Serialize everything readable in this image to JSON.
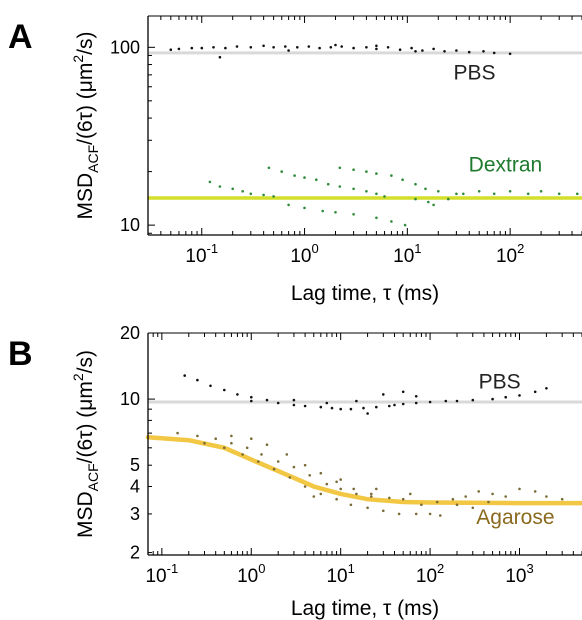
{
  "chart_data": [
    {
      "panel_label": "A",
      "type": "scatter",
      "xscale": "log",
      "yscale": "log",
      "xlim": [
        0.03,
        500
      ],
      "ylim": [
        8.8,
        150
      ],
      "xlabel": "Lag time, τ (ms)",
      "ylabel": {
        "base": "MSD",
        "sub": "ACF",
        "mid": "/(6τ) (μm",
        "sup": "2",
        "end": "/s)"
      },
      "xticks": [
        {
          "value": 0.1,
          "base": "10",
          "exp": "-1"
        },
        {
          "value": 1,
          "base": "10",
          "exp": "0"
        },
        {
          "value": 10,
          "base": "10",
          "exp": "1"
        },
        {
          "value": 100,
          "base": "10",
          "exp": "2"
        }
      ],
      "yticks": [
        {
          "value": 10,
          "label": "10"
        },
        {
          "value": 100,
          "label": "100"
        }
      ],
      "reference_lines": [
        {
          "y": 93,
          "color": "#d9d9d9"
        },
        {
          "y": 14.2,
          "color": "#d4df2a"
        }
      ],
      "annotations": [
        {
          "text": "PBS",
          "x": 45,
          "y": 66,
          "color": "#222222"
        },
        {
          "text": "Dextran",
          "x": 90,
          "y": 20,
          "color": "#1e7a2e"
        }
      ],
      "series": [
        {
          "color": "#111111",
          "points": [
            [
              0.05,
              97
            ],
            [
              0.06,
              98
            ],
            [
              0.08,
              99
            ],
            [
              0.1,
              99
            ],
            [
              0.13,
              100
            ],
            [
              0.17,
              99
            ],
            [
              0.22,
              101
            ],
            [
              0.3,
              100
            ],
            [
              0.4,
              102
            ],
            [
              0.5,
              100
            ],
            [
              0.65,
              101
            ],
            [
              0.85,
              100
            ],
            [
              1.1,
              101
            ],
            [
              1.4,
              99
            ],
            [
              1.8,
              100
            ],
            [
              2.3,
              101
            ],
            [
              3,
              99
            ],
            [
              4,
              100
            ],
            [
              5,
              98
            ],
            [
              6.5,
              100
            ],
            [
              8.5,
              97
            ],
            [
              11,
              99
            ],
            [
              14,
              96
            ],
            [
              18,
              98
            ],
            [
              23,
              95
            ],
            [
              30,
              96
            ],
            [
              40,
              94
            ],
            [
              55,
              95
            ],
            [
              70,
              93
            ],
            [
              100,
              92
            ],
            [
              0.7,
              96
            ],
            [
              2,
              103
            ],
            [
              5,
              102
            ],
            [
              12,
              95
            ],
            [
              0.15,
              88
            ]
          ]
        },
        {
          "color": "#2e8b3a",
          "points": [
            [
              0.12,
              17.5
            ],
            [
              0.15,
              16.5
            ],
            [
              0.2,
              16
            ],
            [
              0.25,
              15.5
            ],
            [
              0.3,
              15
            ],
            [
              0.4,
              14.8
            ],
            [
              0.5,
              14.5
            ],
            [
              0.45,
              21
            ],
            [
              0.6,
              20
            ],
            [
              0.8,
              19
            ],
            [
              1,
              18.5
            ],
            [
              1.3,
              18
            ],
            [
              1.7,
              17
            ],
            [
              2.2,
              16.5
            ],
            [
              3,
              16
            ],
            [
              4,
              15.5
            ],
            [
              5,
              15
            ],
            [
              2.2,
              21
            ],
            [
              3,
              20.5
            ],
            [
              4,
              20
            ],
            [
              5,
              19.5
            ],
            [
              7,
              19
            ],
            [
              9,
              18
            ],
            [
              12,
              17
            ],
            [
              15,
              16
            ],
            [
              20,
              15.5
            ],
            [
              30,
              15
            ],
            [
              1,
              12.5
            ],
            [
              1.5,
              12
            ],
            [
              2,
              11.8
            ],
            [
              3,
              11.5
            ],
            [
              5,
              11
            ],
            [
              7,
              10.5
            ],
            [
              9.5,
              10
            ],
            [
              0.7,
              13
            ],
            [
              12,
              14
            ],
            [
              16,
              13.5
            ],
            [
              25,
              14
            ],
            [
              35,
              15
            ],
            [
              50,
              15.5
            ],
            [
              70,
              15
            ],
            [
              100,
              15.5
            ],
            [
              150,
              15
            ],
            [
              200,
              15.5
            ],
            [
              300,
              15
            ],
            [
              450,
              15
            ],
            [
              6,
              14.5
            ],
            [
              18,
              13
            ]
          ]
        }
      ]
    },
    {
      "panel_label": "B",
      "type": "scatter",
      "xscale": "log",
      "yscale": "log",
      "xlim": [
        0.07,
        5000
      ],
      "ylim": [
        1.95,
        20
      ],
      "xlabel": "Lag time, τ (ms)",
      "ylabel": {
        "base": "MSD",
        "sub": "ACF",
        "mid": "/(6τ) (μm",
        "sup": "2",
        "end": "/s)"
      },
      "xticks": [
        {
          "value": 0.1,
          "base": "10",
          "exp": "-1"
        },
        {
          "value": 1,
          "base": "10",
          "exp": "0"
        },
        {
          "value": 10,
          "base": "10",
          "exp": "1"
        },
        {
          "value": 100,
          "base": "10",
          "exp": "2"
        },
        {
          "value": 1000,
          "base": "10",
          "exp": "3"
        }
      ],
      "yticks": [
        {
          "value": 2,
          "label": "2"
        },
        {
          "value": 3,
          "label": "3"
        },
        {
          "value": 4,
          "label": "4"
        },
        {
          "value": 5,
          "label": "5"
        },
        {
          "value": 10,
          "label": "10"
        },
        {
          "value": 20,
          "label": "20"
        }
      ],
      "reference_lines": [
        {
          "y": 9.7,
          "color": "#d9d9d9"
        }
      ],
      "fit_curve": {
        "color": "#f2c744",
        "points": [
          [
            0.07,
            6.7
          ],
          [
            0.2,
            6.5
          ],
          [
            0.5,
            6.0
          ],
          [
            1,
            5.3
          ],
          [
            2,
            4.7
          ],
          [
            5,
            4.0
          ],
          [
            10,
            3.7
          ],
          [
            20,
            3.5
          ],
          [
            50,
            3.4
          ],
          [
            100,
            3.38
          ],
          [
            1000,
            3.36
          ],
          [
            5000,
            3.36
          ]
        ]
      },
      "annotations": [
        {
          "text": "PBS",
          "x": 600,
          "y": 11.2,
          "color": "#222222"
        },
        {
          "text": "Agarose",
          "x": 900,
          "y": 2.7,
          "color": "#8a6a1e"
        }
      ],
      "series": [
        {
          "color": "#111111",
          "points": [
            [
              0.18,
              12.8
            ],
            [
              0.25,
              12.2
            ],
            [
              0.35,
              11.5
            ],
            [
              0.5,
              11
            ],
            [
              0.7,
              10.5
            ],
            [
              1,
              10.2
            ],
            [
              1.5,
              9.9
            ],
            [
              2,
              9.6
            ],
            [
              3,
              9.4
            ],
            [
              4,
              9.3
            ],
            [
              6,
              9.2
            ],
            [
              8,
              9.1
            ],
            [
              10,
              9.0
            ],
            [
              13,
              9.0
            ],
            [
              18,
              9.1
            ],
            [
              25,
              9.2
            ],
            [
              35,
              9.3
            ],
            [
              50,
              9.5
            ],
            [
              70,
              9.6
            ],
            [
              100,
              9.7
            ],
            [
              150,
              9.8
            ],
            [
              200,
              9.8
            ],
            [
              300,
              9.9
            ],
            [
              500,
              10
            ],
            [
              700,
              10.2
            ],
            [
              1000,
              10.4
            ],
            [
              1500,
              10.8
            ],
            [
              2000,
              11.2
            ],
            [
              30,
              10.5
            ],
            [
              50,
              10.8
            ],
            [
              70,
              10.3
            ],
            [
              15,
              9.8
            ],
            [
              1,
              9.8
            ],
            [
              3,
              9.9
            ],
            [
              7,
              9.6
            ],
            [
              20,
              8.6
            ],
            [
              40,
              9.4
            ]
          ]
        },
        {
          "color": "#7a6a35",
          "points": [
            [
              0.15,
              7.0
            ],
            [
              0.25,
              6.8
            ],
            [
              0.4,
              6.6
            ],
            [
              0.6,
              6.3
            ],
            [
              0.9,
              6.0
            ],
            [
              1.3,
              5.6
            ],
            [
              2,
              5.2
            ],
            [
              3,
              4.9
            ],
            [
              4.5,
              4.5
            ],
            [
              7,
              4.1
            ],
            [
              10,
              3.9
            ],
            [
              15,
              3.7
            ],
            [
              22,
              3.6
            ],
            [
              35,
              3.55
            ],
            [
              50,
              3.5
            ],
            [
              0.3,
              6.3
            ],
            [
              0.5,
              6.0
            ],
            [
              0.8,
              5.6
            ],
            [
              1.2,
              5.2
            ],
            [
              1.8,
              4.8
            ],
            [
              2.7,
              4.4
            ],
            [
              4,
              4.0
            ],
            [
              6,
              3.7
            ],
            [
              9,
              3.5
            ],
            [
              13,
              3.3
            ],
            [
              20,
              3.2
            ],
            [
              30,
              3.1
            ],
            [
              45,
              3.0
            ],
            [
              70,
              3.0
            ],
            [
              100,
              3.0
            ],
            [
              130,
              2.95
            ],
            [
              0.6,
              6.8
            ],
            [
              1,
              6.6
            ],
            [
              1.5,
              6.2
            ],
            [
              2.5,
              5.6
            ],
            [
              4,
              5.0
            ],
            [
              6,
              4.6
            ],
            [
              9,
              4.2
            ],
            [
              14,
              3.9
            ],
            [
              22,
              3.7
            ],
            [
              120,
              3.4
            ],
            [
              180,
              3.5
            ],
            [
              250,
              3.6
            ],
            [
              350,
              3.8
            ],
            [
              500,
              3.7
            ],
            [
              700,
              3.6
            ],
            [
              1000,
              3.9
            ],
            [
              1500,
              3.8
            ],
            [
              2000,
              3.6
            ],
            [
              3000,
              3.5
            ],
            [
              200,
              3.3
            ],
            [
              300,
              3.2
            ],
            [
              450,
              3.4
            ],
            [
              80,
              3.3
            ],
            [
              60,
              3.7
            ],
            [
              10,
              4.3
            ],
            [
              5,
              3.6
            ],
            [
              25,
              3.9
            ]
          ]
        }
      ]
    }
  ]
}
